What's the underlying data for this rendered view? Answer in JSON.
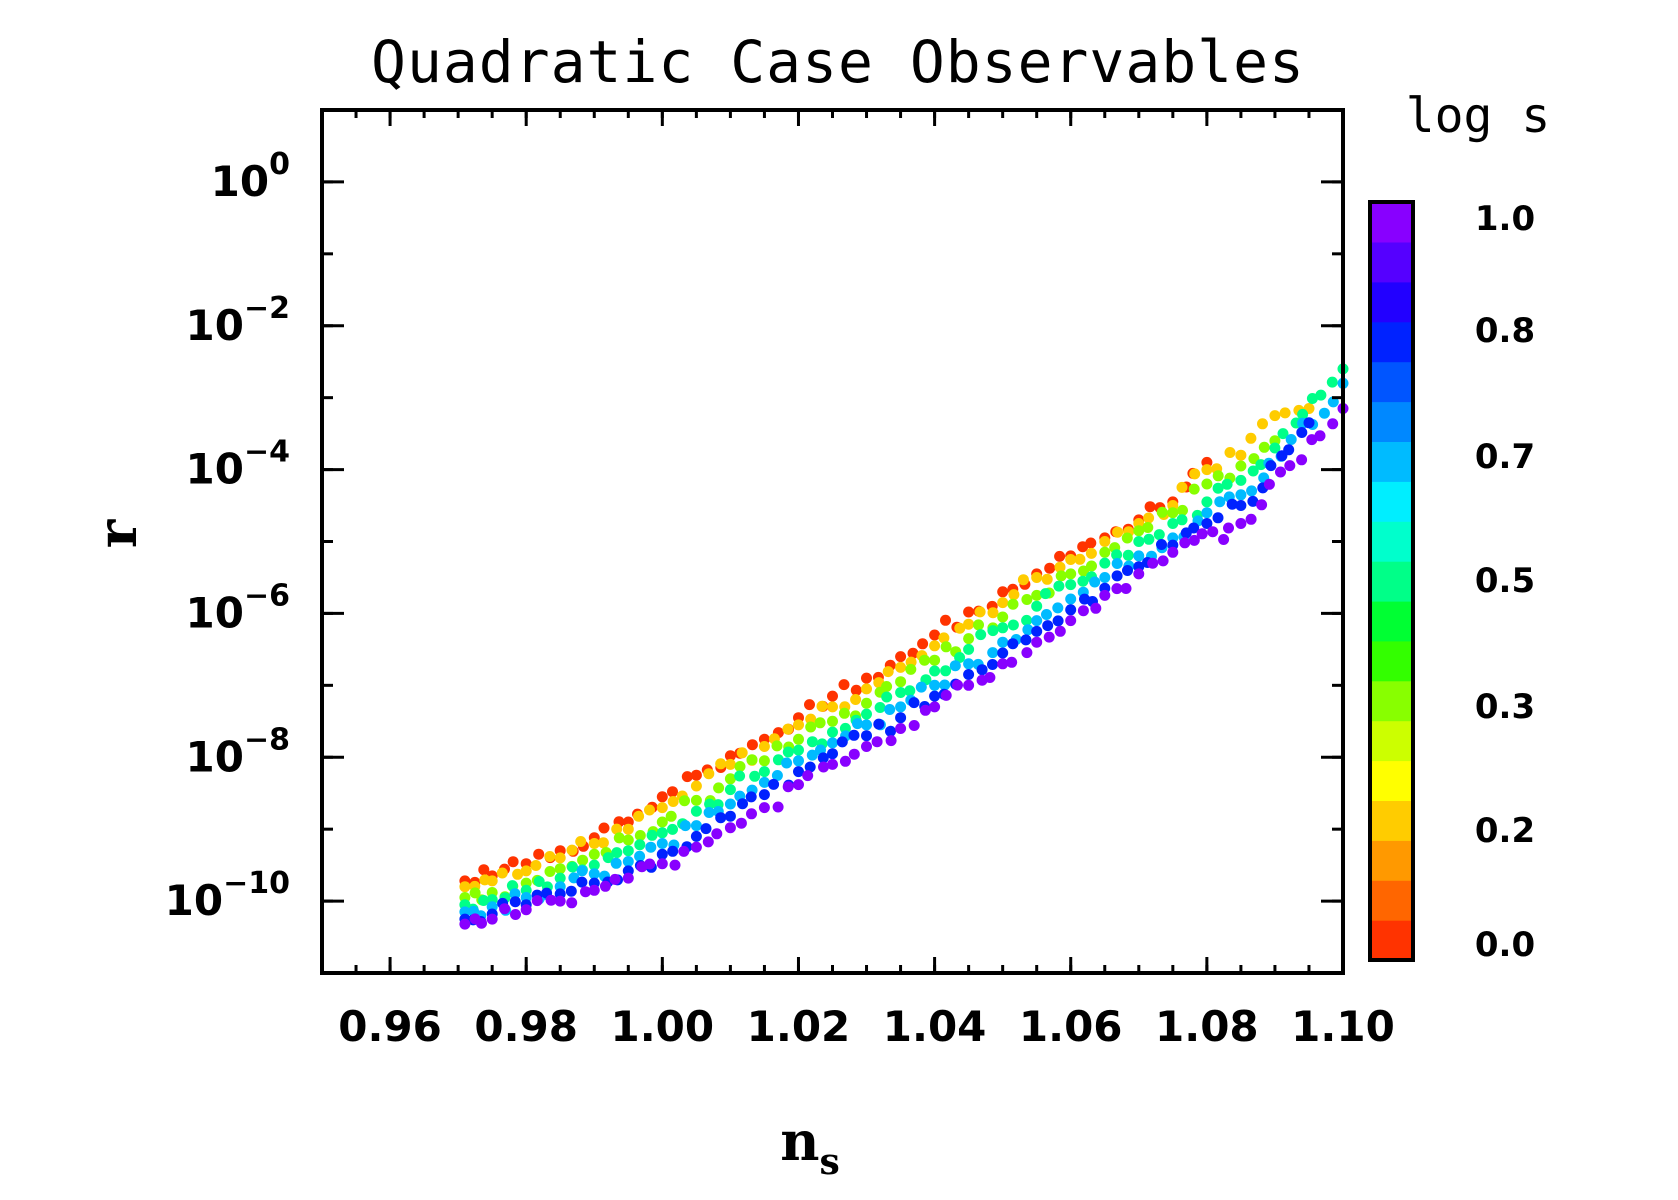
{
  "chart_data": {
    "type": "scatter",
    "title": "Quadratic Case Observables",
    "xlabel": "n",
    "xlabel_subscript": "s",
    "ylabel": "r",
    "xscale": "linear",
    "yscale": "log",
    "xlim": [
      0.95,
      1.1
    ],
    "ylim_exponent": [
      -11,
      1
    ],
    "xticks": [
      "0.96",
      "0.98",
      "1.00",
      "1.02",
      "1.04",
      "1.06",
      "1.08",
      "1.10"
    ],
    "xtick_values": [
      0.96,
      0.98,
      1.0,
      1.02,
      1.04,
      1.06,
      1.08,
      1.1
    ],
    "yticks": [
      {
        "base": "10",
        "exp": "0",
        "value_exp": 0
      },
      {
        "base": "10",
        "exp": "−2",
        "value_exp": -2
      },
      {
        "base": "10",
        "exp": "−4",
        "value_exp": -4
      },
      {
        "base": "10",
        "exp": "−6",
        "value_exp": -6
      },
      {
        "base": "10",
        "exp": "−8",
        "value_exp": -8
      },
      {
        "base": "10",
        "exp": "−10",
        "value_exp": -10
      }
    ],
    "colorbar": {
      "title": "log s",
      "range": [
        0.0,
        1.0
      ],
      "labels": [
        "1.0",
        "0.8",
        "0.7",
        "0.5",
        "0.3",
        "0.2",
        "0.0"
      ],
      "colors": [
        "#ff3300",
        "#ff6600",
        "#ff9900",
        "#ffcc00",
        "#ffff00",
        "#ccff00",
        "#88ff00",
        "#33ff00",
        "#00ff33",
        "#00ff88",
        "#00ffcc",
        "#00eeff",
        "#00bbff",
        "#0088ff",
        "#0055ff",
        "#0022ff",
        "#2200ff",
        "#5500ff",
        "#8800ff"
      ]
    },
    "series_description": {
      "x_range": [
        0.971,
        1.1
      ],
      "logr_at_start": [
        -10.3,
        -9.7
      ],
      "logr_at_end": [
        -3.1,
        -2.2
      ],
      "color_by": "log s"
    },
    "series": [
      {
        "name": "logs=0.00",
        "logs": 0.0,
        "points": [
          [
            0.971,
            -9.72
          ],
          [
            0.975,
            -9.65
          ],
          [
            0.98,
            -9.48
          ],
          [
            0.985,
            -9.3
          ],
          [
            0.99,
            -9.12
          ],
          [
            0.995,
            -8.9
          ],
          [
            1.0,
            -8.55
          ],
          [
            1.005,
            -8.25
          ],
          [
            1.01,
            -7.98
          ],
          [
            1.015,
            -7.75
          ],
          [
            1.02,
            -7.45
          ],
          [
            1.025,
            -7.15
          ],
          [
            1.03,
            -6.9
          ],
          [
            1.035,
            -6.6
          ],
          [
            1.04,
            -6.3
          ],
          [
            1.045,
            -5.98
          ],
          [
            1.05,
            -5.7
          ],
          [
            1.055,
            -5.45
          ],
          [
            1.06,
            -5.2
          ],
          [
            1.065,
            -4.95
          ],
          [
            1.07,
            -4.7
          ],
          [
            1.075,
            -4.45
          ],
          [
            1.08,
            -3.9
          ]
        ]
      },
      {
        "name": "logs=0.17",
        "logs": 0.17,
        "points": [
          [
            0.971,
            -9.8
          ],
          [
            0.975,
            -9.72
          ],
          [
            0.98,
            -9.58
          ],
          [
            0.985,
            -9.4
          ],
          [
            0.99,
            -9.2
          ],
          [
            0.995,
            -9.0
          ],
          [
            1.0,
            -8.7
          ],
          [
            1.005,
            -8.4
          ],
          [
            1.01,
            -8.1
          ],
          [
            1.015,
            -7.85
          ],
          [
            1.02,
            -7.55
          ],
          [
            1.025,
            -7.3
          ],
          [
            1.03,
            -7.05
          ],
          [
            1.035,
            -6.75
          ],
          [
            1.04,
            -6.45
          ],
          [
            1.045,
            -6.15
          ],
          [
            1.05,
            -5.85
          ],
          [
            1.055,
            -5.5
          ],
          [
            1.06,
            -5.25
          ],
          [
            1.065,
            -5.0
          ],
          [
            1.07,
            -4.75
          ],
          [
            1.075,
            -4.5
          ],
          [
            1.08,
            -4.0
          ],
          [
            1.085,
            -3.8
          ],
          [
            1.09,
            -3.25
          ],
          [
            1.095,
            -3.15
          ]
        ]
      },
      {
        "name": "logs=0.33",
        "logs": 0.33,
        "points": [
          [
            0.971,
            -9.95
          ],
          [
            0.975,
            -9.88
          ],
          [
            0.98,
            -9.75
          ],
          [
            0.985,
            -9.55
          ],
          [
            0.99,
            -9.35
          ],
          [
            0.995,
            -9.15
          ],
          [
            1.0,
            -8.9
          ],
          [
            1.005,
            -8.6
          ],
          [
            1.01,
            -8.3
          ],
          [
            1.015,
            -8.05
          ],
          [
            1.02,
            -7.75
          ],
          [
            1.025,
            -7.5
          ],
          [
            1.03,
            -7.25
          ],
          [
            1.035,
            -6.95
          ],
          [
            1.04,
            -6.65
          ],
          [
            1.045,
            -6.35
          ],
          [
            1.05,
            -6.05
          ],
          [
            1.055,
            -5.75
          ],
          [
            1.06,
            -5.45
          ],
          [
            1.065,
            -5.15
          ],
          [
            1.07,
            -4.85
          ],
          [
            1.075,
            -4.6
          ],
          [
            1.08,
            -4.2
          ],
          [
            1.085,
            -3.95
          ],
          [
            1.09,
            -3.6
          ]
        ]
      },
      {
        "name": "logs=0.50",
        "logs": 0.5,
        "points": [
          [
            0.971,
            -10.05
          ],
          [
            0.975,
            -9.98
          ],
          [
            0.98,
            -9.85
          ],
          [
            0.985,
            -9.68
          ],
          [
            0.99,
            -9.5
          ],
          [
            0.995,
            -9.3
          ],
          [
            1.0,
            -9.05
          ],
          [
            1.005,
            -8.75
          ],
          [
            1.01,
            -8.45
          ],
          [
            1.015,
            -8.2
          ],
          [
            1.02,
            -7.9
          ],
          [
            1.025,
            -7.65
          ],
          [
            1.03,
            -7.4
          ],
          [
            1.035,
            -7.1
          ],
          [
            1.04,
            -6.8
          ],
          [
            1.045,
            -6.5
          ],
          [
            1.05,
            -6.2
          ],
          [
            1.055,
            -5.9
          ],
          [
            1.06,
            -5.6
          ],
          [
            1.065,
            -5.3
          ],
          [
            1.07,
            -5.0
          ],
          [
            1.075,
            -4.75
          ],
          [
            1.08,
            -4.45
          ],
          [
            1.085,
            -4.15
          ],
          [
            1.09,
            -3.7
          ],
          [
            1.1,
            -2.6
          ]
        ]
      },
      {
        "name": "logs=0.67",
        "logs": 0.67,
        "points": [
          [
            0.971,
            -10.15
          ],
          [
            0.975,
            -10.08
          ],
          [
            0.98,
            -9.95
          ],
          [
            0.985,
            -9.8
          ],
          [
            0.99,
            -9.62
          ],
          [
            0.995,
            -9.45
          ],
          [
            1.0,
            -9.2
          ],
          [
            1.005,
            -8.95
          ],
          [
            1.01,
            -8.65
          ],
          [
            1.015,
            -8.35
          ],
          [
            1.02,
            -8.05
          ],
          [
            1.025,
            -7.8
          ],
          [
            1.03,
            -7.55
          ],
          [
            1.035,
            -7.3
          ],
          [
            1.04,
            -7.0
          ],
          [
            1.045,
            -6.7
          ],
          [
            1.05,
            -6.4
          ],
          [
            1.055,
            -6.1
          ],
          [
            1.06,
            -5.8
          ],
          [
            1.065,
            -5.5
          ],
          [
            1.07,
            -5.2
          ],
          [
            1.075,
            -4.95
          ],
          [
            1.08,
            -4.6
          ],
          [
            1.085,
            -4.35
          ],
          [
            1.1,
            -2.8
          ]
        ]
      },
      {
        "name": "logs=0.83",
        "logs": 0.83,
        "points": [
          [
            0.971,
            -10.25
          ],
          [
            0.975,
            -10.18
          ],
          [
            0.98,
            -10.05
          ],
          [
            0.985,
            -9.9
          ],
          [
            0.99,
            -9.75
          ],
          [
            0.995,
            -9.58
          ],
          [
            1.0,
            -9.35
          ],
          [
            1.005,
            -9.1
          ],
          [
            1.01,
            -8.82
          ],
          [
            1.015,
            -8.52
          ],
          [
            1.02,
            -8.2
          ],
          [
            1.025,
            -7.95
          ],
          [
            1.03,
            -7.7
          ],
          [
            1.035,
            -7.45
          ],
          [
            1.04,
            -7.15
          ],
          [
            1.045,
            -6.85
          ],
          [
            1.05,
            -6.55
          ],
          [
            1.055,
            -6.25
          ],
          [
            1.06,
            -5.95
          ],
          [
            1.065,
            -5.65
          ],
          [
            1.07,
            -5.35
          ],
          [
            1.075,
            -5.05
          ],
          [
            1.08,
            -4.75
          ],
          [
            1.085,
            -4.5
          ],
          [
            1.095,
            -3.35
          ]
        ]
      },
      {
        "name": "logs=1.00",
        "logs": 1.0,
        "points": [
          [
            0.971,
            -10.32
          ],
          [
            0.975,
            -10.25
          ],
          [
            0.98,
            -10.12
          ],
          [
            0.985,
            -10.0
          ],
          [
            0.99,
            -9.85
          ],
          [
            0.995,
            -9.68
          ],
          [
            1.0,
            -9.48
          ],
          [
            1.005,
            -9.25
          ],
          [
            1.01,
            -8.98
          ],
          [
            1.015,
            -8.7
          ],
          [
            1.02,
            -8.38
          ],
          [
            1.025,
            -8.1
          ],
          [
            1.03,
            -7.85
          ],
          [
            1.035,
            -7.6
          ],
          [
            1.04,
            -7.3
          ],
          [
            1.045,
            -7.0
          ],
          [
            1.05,
            -6.7
          ],
          [
            1.055,
            -6.4
          ],
          [
            1.06,
            -6.1
          ],
          [
            1.065,
            -5.75
          ],
          [
            1.07,
            -5.45
          ],
          [
            1.075,
            -5.15
          ],
          [
            1.085,
            -4.75
          ],
          [
            1.1,
            -3.15
          ]
        ]
      }
    ]
  }
}
